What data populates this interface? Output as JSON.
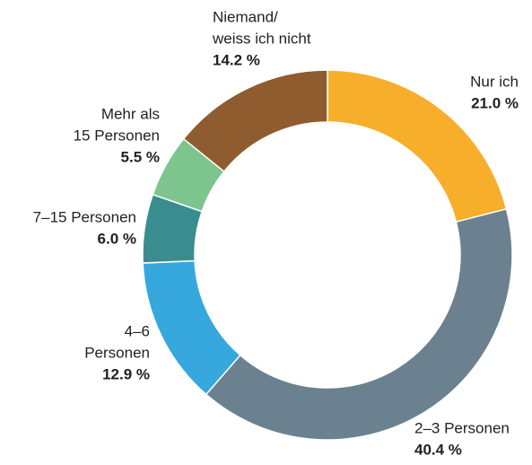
{
  "chart_data": {
    "type": "donut",
    "categories": [
      [
        "Nur ich"
      ],
      [
        "2–3 Personen"
      ],
      [
        "4–6",
        "Personen"
      ],
      [
        "7–15 Personen"
      ],
      [
        "Mehr als",
        "15 Personen"
      ],
      [
        "Niemand/",
        "weiss ich nicht"
      ]
    ],
    "values": [
      21.0,
      40.4,
      12.9,
      6.0,
      5.5,
      14.2
    ],
    "value_labels": [
      "21.0 %",
      "40.4 %",
      "12.9 %",
      "6.0 %",
      "5.5 %",
      "14.2 %"
    ],
    "colors": [
      "#f7ae2a",
      "#6b8190",
      "#36a8de",
      "#3a8d8e",
      "#7dc48e",
      "#8e5c2f"
    ]
  }
}
